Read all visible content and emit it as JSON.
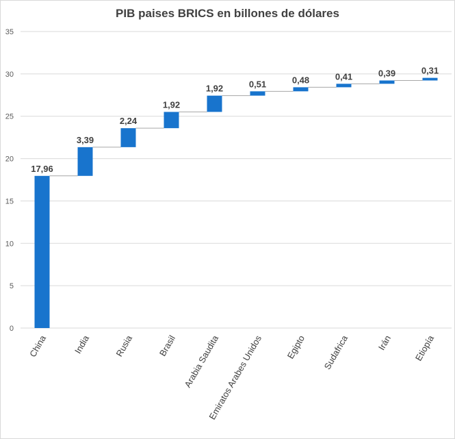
{
  "chart_data": {
    "type": "bar",
    "subtype": "waterfall",
    "title": "PIB paises BRICS en billones de dólares",
    "xlabel": "",
    "ylabel": "",
    "ylim": [
      0,
      35
    ],
    "yticks": [
      "0",
      "5",
      "10",
      "15",
      "20",
      "25",
      "30",
      "35"
    ],
    "categories": [
      "China",
      "India",
      "Rusia",
      "Brasil",
      "Arabia Saudita",
      "Emiratos Arabes Unidos",
      "Egipto",
      "Sudafrica",
      "Irán",
      "Etiopía"
    ],
    "values": [
      17.96,
      3.39,
      2.24,
      1.92,
      1.92,
      0.51,
      0.48,
      0.41,
      0.39,
      0.31
    ],
    "value_labels": [
      "17,96",
      "3,39",
      "2,24",
      "1,92",
      "1,92",
      "0,51",
      "0,48",
      "0,41",
      "0,39",
      "0,31"
    ],
    "grid": true,
    "legend": "none",
    "colors": {
      "bar": "#1874CD",
      "grid": "#d9d9d9",
      "connector": "#a6a6a6"
    }
  }
}
